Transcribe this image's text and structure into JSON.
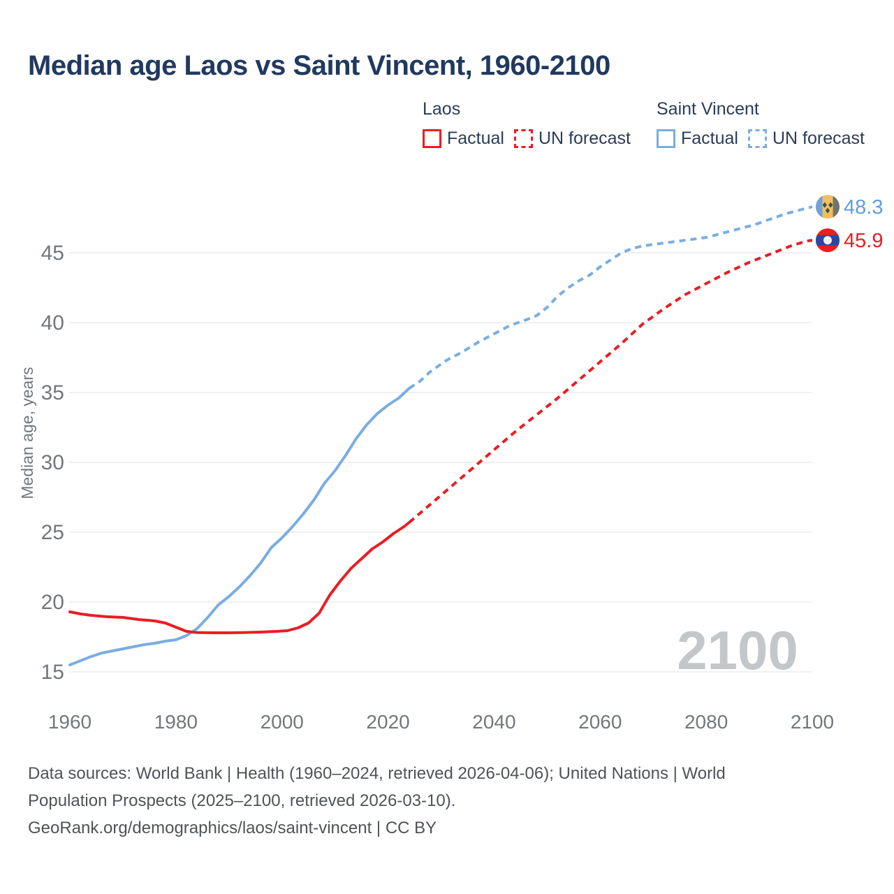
{
  "title": {
    "text": "Median age Laos vs Saint Vincent, 1960-2100"
  },
  "legend": {
    "groups": [
      {
        "name": "Laos",
        "color": "#ea1d23",
        "items": [
          {
            "label": "Factual",
            "style": "solid"
          },
          {
            "label": "UN forecast",
            "style": "dashed"
          }
        ]
      },
      {
        "name": "Saint Vincent",
        "color": "#7aade2",
        "items": [
          {
            "label": "Factual",
            "style": "solid"
          },
          {
            "label": "UN forecast",
            "style": "dashed"
          }
        ]
      }
    ]
  },
  "chart_data": {
    "type": "line",
    "title": "Median age Laos vs Saint Vincent, 1960-2100",
    "xlabel": "",
    "ylabel": "Median age, years",
    "xlim": [
      1960,
      2100
    ],
    "ylim": [
      15,
      48.5
    ],
    "x_ticks": [
      1960,
      1980,
      2000,
      2020,
      2040,
      2060,
      2080,
      2100
    ],
    "y_ticks": [
      15,
      20,
      25,
      30,
      35,
      40,
      45
    ],
    "grid": "horizontal",
    "legend_position": "top-right",
    "watermark": "2100",
    "colors": {
      "laos": "#ea1d23",
      "saint_vincent": "#7aade2",
      "grid": "#ececec",
      "axis_text": "#72777c",
      "watermark": "#c4c7ca",
      "blue_value_label": "#5f9edd",
      "red_value_label": "#ea1d23"
    },
    "series": [
      {
        "id": "saint-vincent-factual",
        "name": "Saint Vincent Factual",
        "color": "#7aade2",
        "dash": false,
        "points": [
          [
            1960,
            15.5
          ],
          [
            1962,
            15.8
          ],
          [
            1964,
            16.1
          ],
          [
            1966,
            16.35
          ],
          [
            1968,
            16.5
          ],
          [
            1970,
            16.65
          ],
          [
            1972,
            16.8
          ],
          [
            1974,
            16.95
          ],
          [
            1976,
            17.05
          ],
          [
            1978,
            17.2
          ],
          [
            1980,
            17.3
          ],
          [
            1982,
            17.6
          ],
          [
            1984,
            18.1
          ],
          [
            1986,
            18.9
          ],
          [
            1988,
            19.8
          ],
          [
            1990,
            20.4
          ],
          [
            1992,
            21.1
          ],
          [
            1994,
            21.9
          ],
          [
            1996,
            22.8
          ],
          [
            1998,
            23.9
          ],
          [
            2000,
            24.6
          ],
          [
            2002,
            25.4
          ],
          [
            2004,
            26.3
          ],
          [
            2006,
            27.3
          ],
          [
            2008,
            28.5
          ],
          [
            2010,
            29.4
          ],
          [
            2012,
            30.5
          ],
          [
            2014,
            31.7
          ],
          [
            2016,
            32.7
          ],
          [
            2018,
            33.5
          ],
          [
            2020,
            34.1
          ],
          [
            2022,
            34.6
          ],
          [
            2024,
            35.3
          ]
        ]
      },
      {
        "id": "saint-vincent-forecast",
        "name": "Saint Vincent UN forecast",
        "color": "#7aade2",
        "dash": true,
        "points": [
          [
            2024,
            35.3
          ],
          [
            2026,
            35.8
          ],
          [
            2028,
            36.5
          ],
          [
            2031,
            37.3
          ],
          [
            2034,
            37.9
          ],
          [
            2037,
            38.6
          ],
          [
            2040,
            39.2
          ],
          [
            2043,
            39.8
          ],
          [
            2046,
            40.2
          ],
          [
            2048,
            40.5
          ],
          [
            2050,
            41.1
          ],
          [
            2052,
            41.9
          ],
          [
            2054,
            42.5
          ],
          [
            2056,
            43.0
          ],
          [
            2058,
            43.4
          ],
          [
            2060,
            44.0
          ],
          [
            2062,
            44.5
          ],
          [
            2064,
            45.0
          ],
          [
            2066,
            45.3
          ],
          [
            2068,
            45.5
          ],
          [
            2071,
            45.65
          ],
          [
            2074,
            45.8
          ],
          [
            2077,
            45.95
          ],
          [
            2080,
            46.1
          ],
          [
            2083,
            46.4
          ],
          [
            2086,
            46.7
          ],
          [
            2089,
            47.0
          ],
          [
            2092,
            47.4
          ],
          [
            2095,
            47.8
          ],
          [
            2098,
            48.1
          ],
          [
            2100,
            48.3
          ]
        ]
      },
      {
        "id": "laos-factual",
        "name": "Laos Factual",
        "color": "#ea1d23",
        "dash": false,
        "points": [
          [
            1960,
            19.3
          ],
          [
            1962,
            19.15
          ],
          [
            1964,
            19.05
          ],
          [
            1967,
            18.95
          ],
          [
            1970,
            18.9
          ],
          [
            1973,
            18.75
          ],
          [
            1976,
            18.65
          ],
          [
            1978,
            18.5
          ],
          [
            1980,
            18.2
          ],
          [
            1982,
            17.9
          ],
          [
            1984,
            17.82
          ],
          [
            1987,
            17.8
          ],
          [
            1990,
            17.8
          ],
          [
            1993,
            17.82
          ],
          [
            1996,
            17.85
          ],
          [
            1999,
            17.9
          ],
          [
            2001,
            17.95
          ],
          [
            2003,
            18.15
          ],
          [
            2005,
            18.5
          ],
          [
            2007,
            19.2
          ],
          [
            2009,
            20.5
          ],
          [
            2011,
            21.5
          ],
          [
            2013,
            22.4
          ],
          [
            2015,
            23.1
          ],
          [
            2017,
            23.8
          ],
          [
            2019,
            24.3
          ],
          [
            2021,
            24.9
          ],
          [
            2023,
            25.4
          ],
          [
            2024,
            25.7
          ]
        ]
      },
      {
        "id": "laos-forecast",
        "name": "Laos UN forecast",
        "color": "#ea1d23",
        "dash": true,
        "points": [
          [
            2024,
            25.7
          ],
          [
            2028,
            27.0
          ],
          [
            2032,
            28.3
          ],
          [
            2036,
            29.6
          ],
          [
            2040,
            30.9
          ],
          [
            2044,
            32.2
          ],
          [
            2048,
            33.4
          ],
          [
            2052,
            34.6
          ],
          [
            2056,
            35.9
          ],
          [
            2060,
            37.2
          ],
          [
            2064,
            38.5
          ],
          [
            2068,
            39.9
          ],
          [
            2072,
            41.0
          ],
          [
            2076,
            42.0
          ],
          [
            2080,
            42.8
          ],
          [
            2084,
            43.6
          ],
          [
            2088,
            44.3
          ],
          [
            2092,
            44.9
          ],
          [
            2096,
            45.5
          ],
          [
            2099,
            45.85
          ],
          [
            2100,
            45.9
          ]
        ]
      }
    ],
    "end_labels": [
      {
        "flag": "saint-vincent",
        "value": "48.3",
        "value_num": 48.3,
        "color": "#5f9edd"
      },
      {
        "flag": "laos",
        "value": "45.9",
        "value_num": 45.9,
        "color": "#ea1d23"
      }
    ]
  },
  "footer": {
    "sources": "Data sources: World Bank | Health (1960–2024, retrieved 2026-04-06); United Nations | World Population Prospects (2025–2100, retrieved 2026-03-10).",
    "link": "GeoRank.org/demographics/laos/saint-vincent | CC BY"
  }
}
